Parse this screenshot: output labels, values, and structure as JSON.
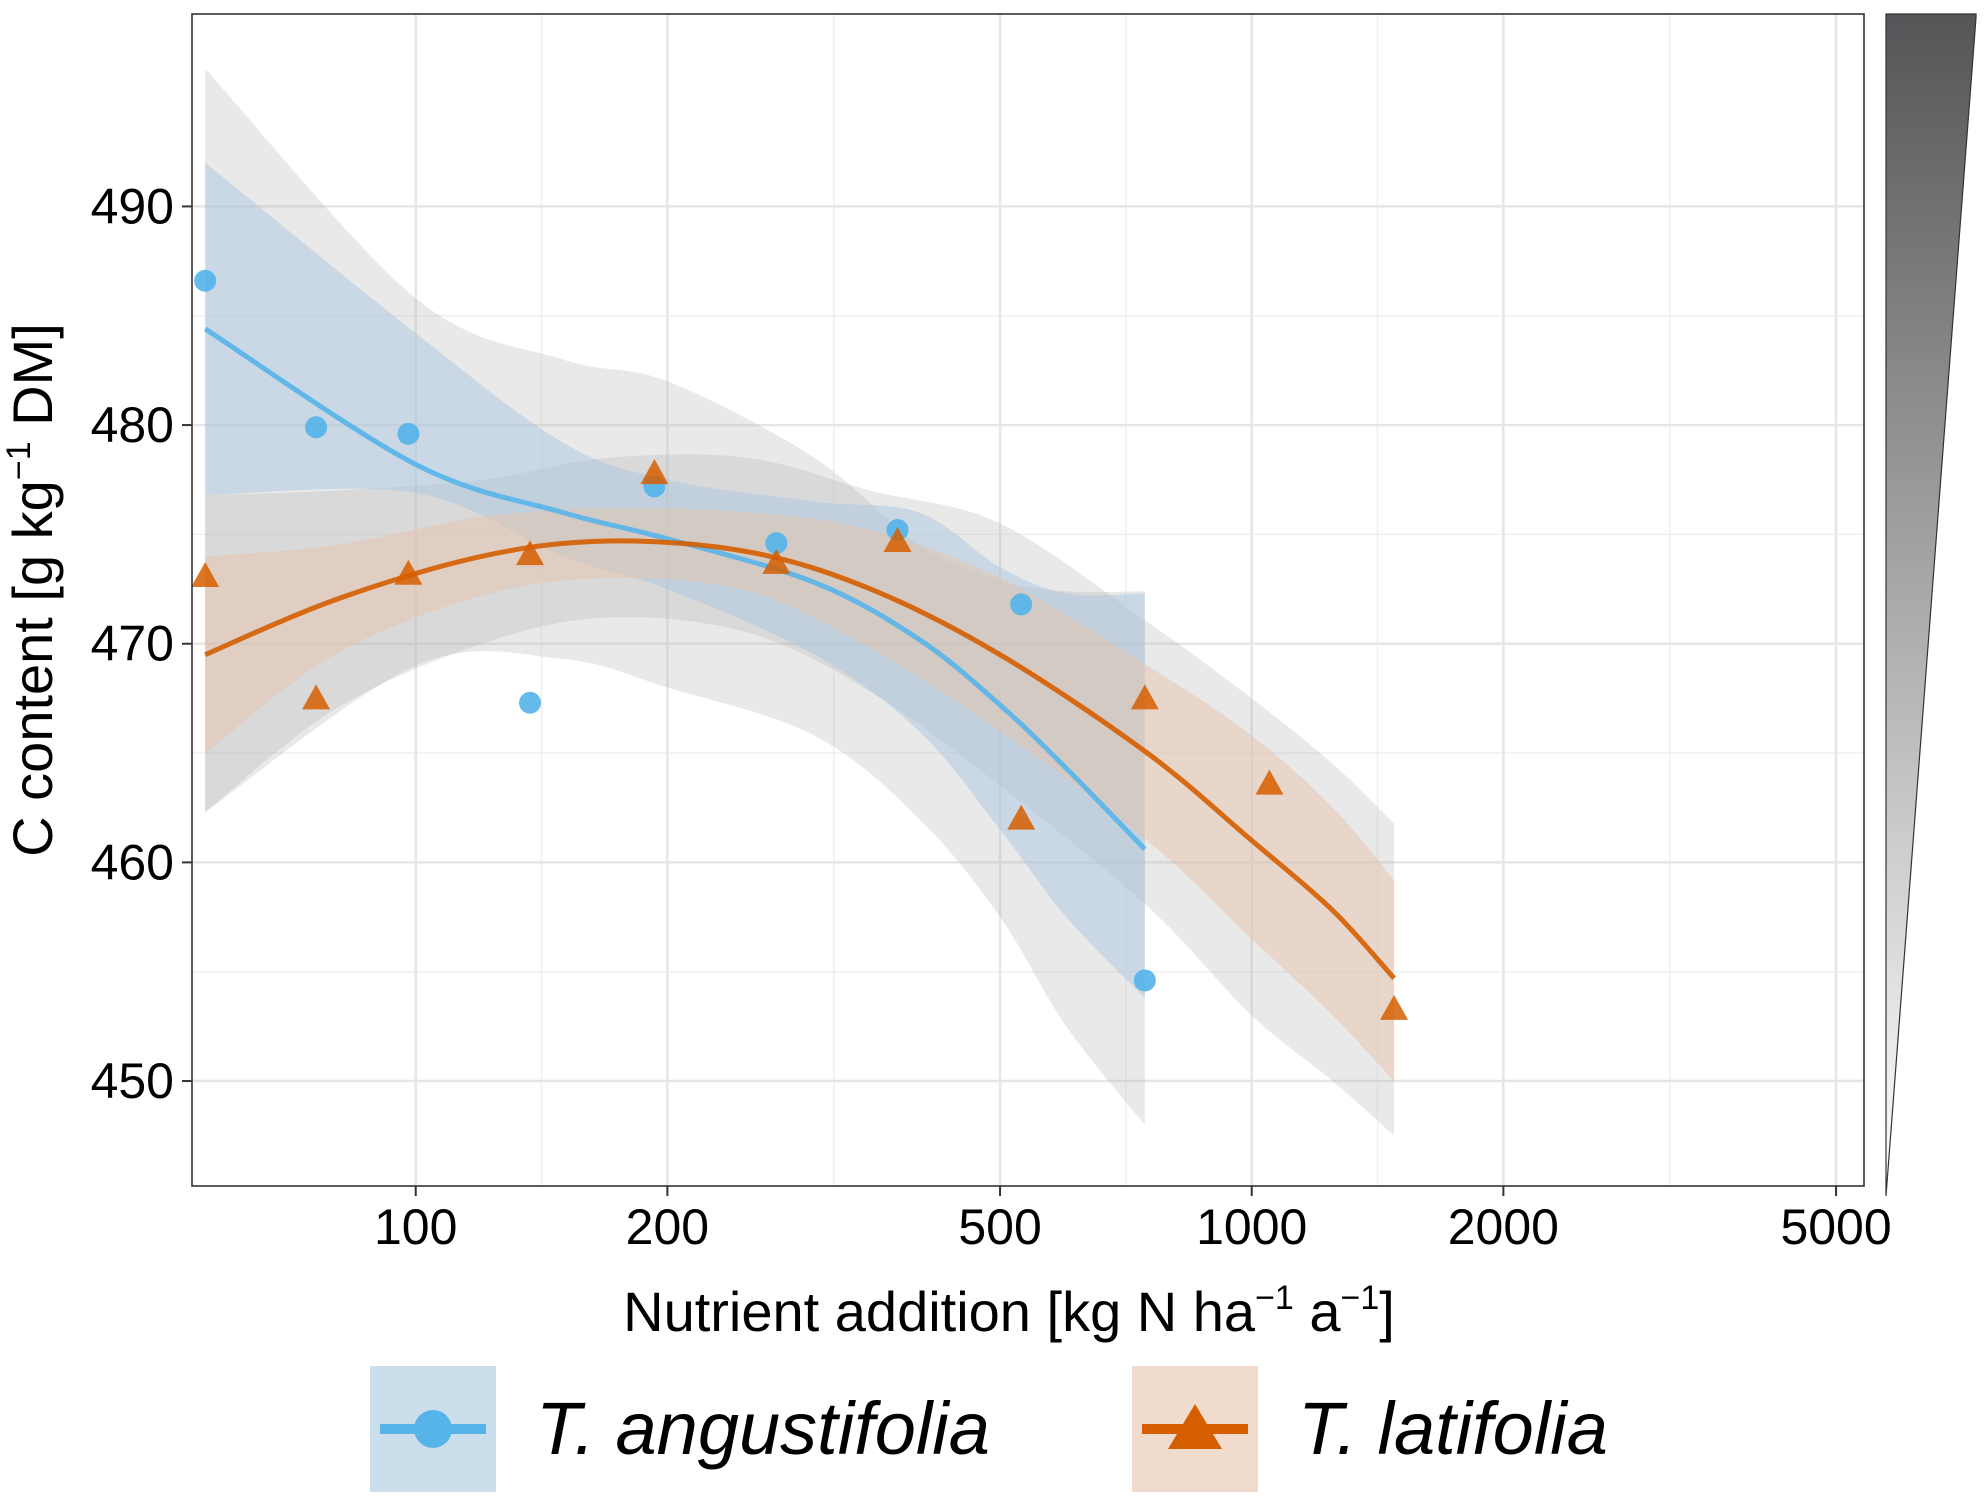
{
  "chart_data": {
    "type": "scatter",
    "title": "",
    "xlabel": {
      "base": "Nutrient addition [kg N ha",
      "sup1": "−1",
      "mid": " a",
      "sup2": "−1",
      "end": "]"
    },
    "ylabel": {
      "base": "C content [g kg",
      "sup": "−1",
      "end": " DM]"
    },
    "x_scale": "log",
    "xlim": [
      54,
      5400
    ],
    "ylim": [
      445.2,
      498.8
    ],
    "x_ticks": [
      100,
      200,
      500,
      1000,
      2000,
      5000
    ],
    "x_tick_labels": [
      "100",
      "200",
      "500",
      "1000",
      "2000",
      "5000"
    ],
    "y_ticks": [
      450,
      460,
      470,
      480,
      490
    ],
    "y_tick_labels": [
      "450",
      "460",
      "470",
      "480",
      "490"
    ],
    "grid": true,
    "legend_position": "bottom",
    "gradient_bar": {
      "position": "right",
      "from_color": "#ffffff",
      "to_color": "#555558"
    },
    "series": [
      {
        "name": "T. angustifolia",
        "color": "#56b4e9",
        "band_color": "#a9c8e0",
        "marker": "circle",
        "points": [
          {
            "x": 56,
            "y": 486.6
          },
          {
            "x": 76,
            "y": 479.9
          },
          {
            "x": 98,
            "y": 479.6
          },
          {
            "x": 137,
            "y": 467.3
          },
          {
            "x": 193,
            "y": 477.2
          },
          {
            "x": 270,
            "y": 474.6
          },
          {
            "x": 377,
            "y": 475.2
          },
          {
            "x": 530,
            "y": 471.8
          },
          {
            "x": 745,
            "y": 454.6
          }
        ],
        "fit": [
          {
            "x": 56,
            "y": 484.4
          },
          {
            "x": 100,
            "y": 478.2
          },
          {
            "x": 150,
            "y": 476.0
          },
          {
            "x": 200,
            "y": 474.8
          },
          {
            "x": 300,
            "y": 472.8
          },
          {
            "x": 400,
            "y": 470.2
          },
          {
            "x": 500,
            "y": 467.2
          },
          {
            "x": 600,
            "y": 464.3
          },
          {
            "x": 745,
            "y": 460.6
          }
        ],
        "ci_inner": {
          "upper": [
            {
              "x": 56,
              "y": 492.0
            },
            {
              "x": 100,
              "y": 484.2
            },
            {
              "x": 150,
              "y": 479.2
            },
            {
              "x": 200,
              "y": 477.5
            },
            {
              "x": 300,
              "y": 476.5
            },
            {
              "x": 400,
              "y": 476.0
            },
            {
              "x": 500,
              "y": 473.5
            },
            {
              "x": 600,
              "y": 472.3
            },
            {
              "x": 745,
              "y": 472.3
            }
          ],
          "lower": [
            {
              "x": 56,
              "y": 476.8
            },
            {
              "x": 100,
              "y": 476.9
            },
            {
              "x": 150,
              "y": 474.0
            },
            {
              "x": 200,
              "y": 472.5
            },
            {
              "x": 300,
              "y": 469.5
            },
            {
              "x": 400,
              "y": 466.0
            },
            {
              "x": 500,
              "y": 461.5
            },
            {
              "x": 600,
              "y": 457.5
            },
            {
              "x": 745,
              "y": 453.8
            }
          ]
        },
        "ci_outer": {
          "upper": [
            {
              "x": 56,
              "y": 496.3
            },
            {
              "x": 100,
              "y": 485.8
            },
            {
              "x": 150,
              "y": 483.0
            },
            {
              "x": 200,
              "y": 482.0
            },
            {
              "x": 300,
              "y": 478.5
            },
            {
              "x": 400,
              "y": 474.5
            },
            {
              "x": 500,
              "y": 472.9
            },
            {
              "x": 600,
              "y": 472.4
            },
            {
              "x": 745,
              "y": 472.4
            }
          ],
          "lower": [
            {
              "x": 56,
              "y": 462.3
            },
            {
              "x": 100,
              "y": 469.0
            },
            {
              "x": 150,
              "y": 469.3
            },
            {
              "x": 200,
              "y": 468.0
            },
            {
              "x": 300,
              "y": 465.8
            },
            {
              "x": 400,
              "y": 462.0
            },
            {
              "x": 500,
              "y": 457.5
            },
            {
              "x": 600,
              "y": 452.5
            },
            {
              "x": 745,
              "y": 448.0
            }
          ]
        }
      },
      {
        "name": "T. latifolia",
        "color": "#d55e00",
        "band_color": "#e8c3ac",
        "marker": "triangle",
        "points": [
          {
            "x": 56,
            "y": 473.1
          },
          {
            "x": 76,
            "y": 467.5
          },
          {
            "x": 98,
            "y": 473.2
          },
          {
            "x": 137,
            "y": 474.1
          },
          {
            "x": 193,
            "y": 477.8
          },
          {
            "x": 270,
            "y": 473.7
          },
          {
            "x": 377,
            "y": 474.7
          },
          {
            "x": 530,
            "y": 462.0
          },
          {
            "x": 745,
            "y": 467.5
          },
          {
            "x": 1050,
            "y": 463.6
          },
          {
            "x": 1480,
            "y": 453.3
          }
        ],
        "fit": [
          {
            "x": 56,
            "y": 469.5
          },
          {
            "x": 80,
            "y": 472.0
          },
          {
            "x": 120,
            "y": 474.0
          },
          {
            "x": 170,
            "y": 474.7
          },
          {
            "x": 250,
            "y": 474.2
          },
          {
            "x": 350,
            "y": 472.5
          },
          {
            "x": 500,
            "y": 469.5
          },
          {
            "x": 750,
            "y": 465.0
          },
          {
            "x": 1000,
            "y": 461.0
          },
          {
            "x": 1250,
            "y": 457.8
          },
          {
            "x": 1480,
            "y": 454.7
          }
        ],
        "ci_inner": {
          "upper": [
            {
              "x": 56,
              "y": 474.0
            },
            {
              "x": 80,
              "y": 474.5
            },
            {
              "x": 120,
              "y": 475.8
            },
            {
              "x": 170,
              "y": 476.2
            },
            {
              "x": 250,
              "y": 476.0
            },
            {
              "x": 350,
              "y": 475.2
            },
            {
              "x": 500,
              "y": 473.0
            },
            {
              "x": 750,
              "y": 469.0
            },
            {
              "x": 1000,
              "y": 465.8
            },
            {
              "x": 1250,
              "y": 462.5
            },
            {
              "x": 1480,
              "y": 459.2
            }
          ],
          "lower": [
            {
              "x": 56,
              "y": 465.0
            },
            {
              "x": 80,
              "y": 469.5
            },
            {
              "x": 120,
              "y": 472.2
            },
            {
              "x": 170,
              "y": 473.0
            },
            {
              "x": 250,
              "y": 472.4
            },
            {
              "x": 350,
              "y": 469.8
            },
            {
              "x": 500,
              "y": 466.0
            },
            {
              "x": 750,
              "y": 461.0
            },
            {
              "x": 1000,
              "y": 456.5
            },
            {
              "x": 1250,
              "y": 453.0
            },
            {
              "x": 1480,
              "y": 450.0
            }
          ]
        },
        "ci_outer": {
          "upper": [
            {
              "x": 56,
              "y": 476.8
            },
            {
              "x": 80,
              "y": 477.0
            },
            {
              "x": 120,
              "y": 477.5
            },
            {
              "x": 170,
              "y": 478.5
            },
            {
              "x": 250,
              "y": 478.5
            },
            {
              "x": 350,
              "y": 477.0
            },
            {
              "x": 500,
              "y": 475.5
            },
            {
              "x": 750,
              "y": 471.0
            },
            {
              "x": 1000,
              "y": 467.5
            },
            {
              "x": 1250,
              "y": 464.5
            },
            {
              "x": 1480,
              "y": 461.8
            }
          ],
          "lower": [
            {
              "x": 56,
              "y": 462.3
            },
            {
              "x": 80,
              "y": 467.0
            },
            {
              "x": 120,
              "y": 470.0
            },
            {
              "x": 170,
              "y": 471.2
            },
            {
              "x": 250,
              "y": 470.5
            },
            {
              "x": 350,
              "y": 467.8
            },
            {
              "x": 500,
              "y": 463.5
            },
            {
              "x": 750,
              "y": 458.0
            },
            {
              "x": 1000,
              "y": 453.0
            },
            {
              "x": 1250,
              "y": 450.0
            },
            {
              "x": 1480,
              "y": 447.5
            }
          ]
        }
      }
    ]
  }
}
